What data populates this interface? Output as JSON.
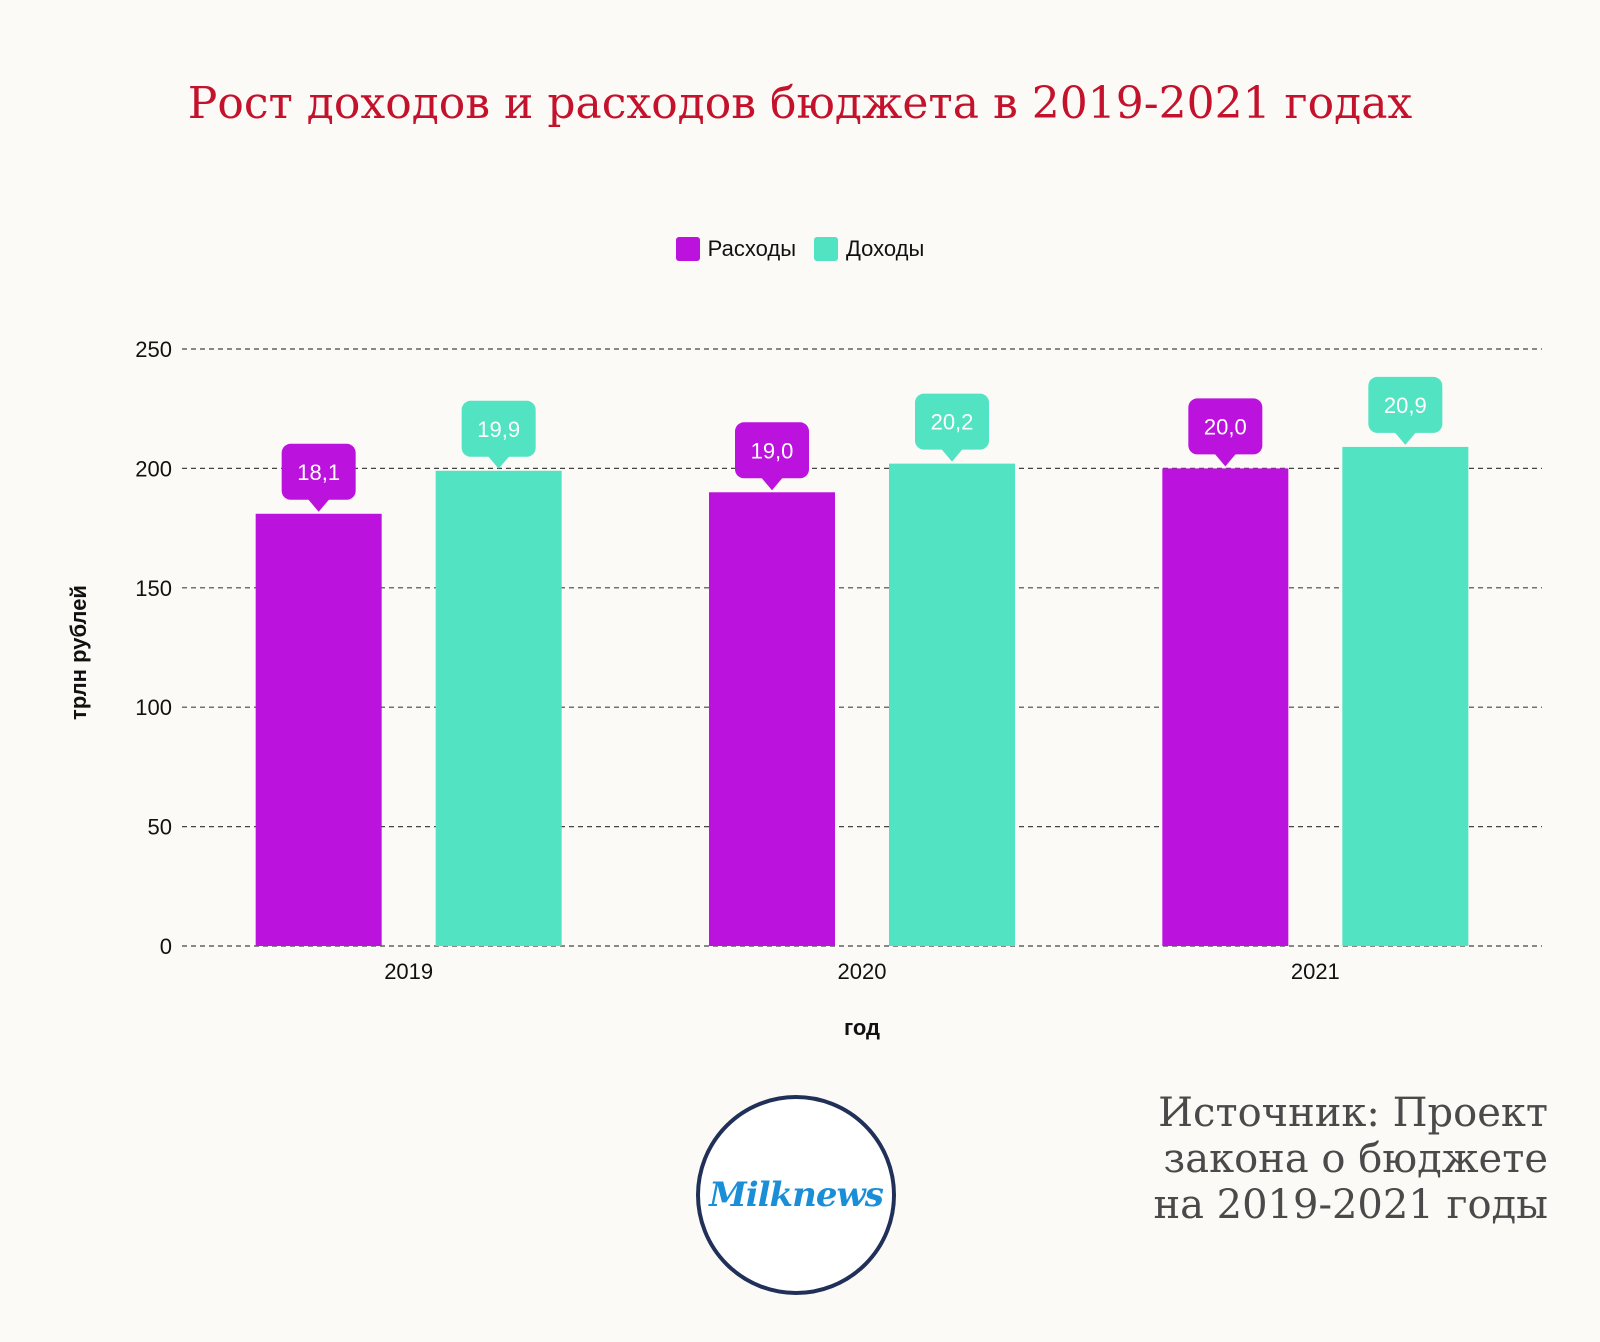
{
  "chart_data": {
    "type": "bar",
    "title": "Рост доходов и расходов бюджета в 2019-2021 годах",
    "xlabel": "год",
    "ylabel": "трлн рублей",
    "categories": [
      "2019",
      "2020",
      "2021"
    ],
    "ylim": [
      0,
      250
    ],
    "yticks": [
      "0",
      "50",
      "100",
      "150",
      "200",
      "250"
    ],
    "grid": true,
    "legend_position": "top-center",
    "series": [
      {
        "name": "Расходы",
        "color": "#bb12dd",
        "values": [
          181,
          190,
          200
        ],
        "labels": [
          "18,1",
          "19,0",
          "20,0"
        ]
      },
      {
        "name": "Доходы",
        "color": "#52e3c2",
        "values": [
          199,
          202,
          209
        ],
        "labels": [
          "19,9",
          "20,2",
          "20,9"
        ]
      }
    ]
  },
  "source": {
    "line1": "Источник: Проект",
    "line2": "закона о бюджете",
    "line3": "на 2019-2021 годы"
  },
  "logo": {
    "text": "Milknews"
  }
}
